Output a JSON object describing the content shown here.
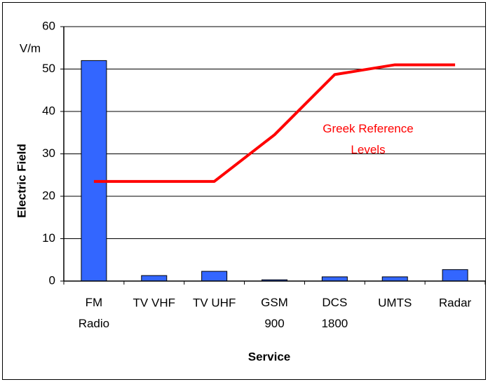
{
  "chart_data": {
    "type": "bar",
    "categories": [
      "FM\nRadio",
      "TV  VHF",
      "TV  UHF",
      "GSM\n900",
      "DCS\n1800",
      "UMTS",
      "Radar"
    ],
    "series": [
      {
        "type": "bar",
        "color": "#3366ff",
        "values": [
          52,
          1.3,
          2.3,
          0.3,
          1.0,
          1.0,
          2.7
        ]
      },
      {
        "type": "line",
        "name": "Greek Reference\nLevels",
        "color": "#ff0000",
        "values": [
          23.5,
          23.5,
          23.5,
          34.5,
          48.7,
          51,
          51
        ]
      }
    ],
    "ylim": [
      0,
      60
    ],
    "yticks": [
      0,
      10,
      20,
      30,
      40,
      50,
      60
    ],
    "grid": true,
    "y_unit": "V/m",
    "ylabel": "Electric Field",
    "xlabel": "Service"
  }
}
